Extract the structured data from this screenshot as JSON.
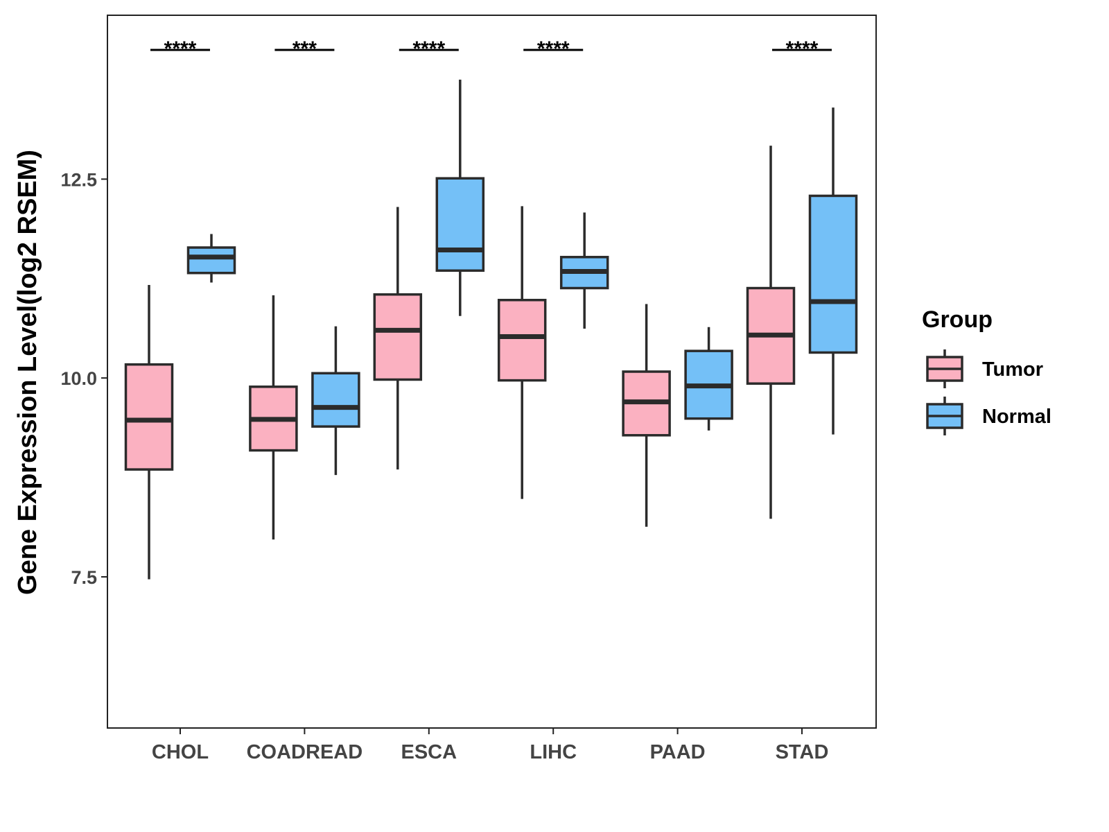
{
  "chart_data": {
    "type": "box",
    "title": "",
    "xlabel": "",
    "ylabel": "Gene Expression Level(log2 RSEM)",
    "ylim": [
      5.6,
      14.56
    ],
    "yticks": [
      "7.5",
      "10.0",
      "12.5"
    ],
    "ytick_values": [
      7.5,
      10.0,
      12.5
    ],
    "grid": false,
    "legend": {
      "title": "Group",
      "placement": "right",
      "entries": [
        "Tumor",
        "Normal"
      ]
    },
    "colors": {
      "Tumor": "#FBB1C1",
      "Normal": "#74C0F7",
      "outline": "#2b2b2b"
    },
    "categories": [
      "CHOL",
      "COADREAD",
      "ESCA",
      "LIHC",
      "PAAD",
      "STAD"
    ],
    "significance": [
      "****",
      "***",
      "****",
      "****",
      "",
      "****"
    ],
    "series": [
      {
        "name": "Tumor",
        "boxes": [
          {
            "whisker_low": 7.47,
            "q1": 8.85,
            "median": 9.47,
            "q3": 10.17,
            "whisker_high": 11.17
          },
          {
            "whisker_low": 7.97,
            "q1": 9.09,
            "median": 9.48,
            "q3": 9.89,
            "whisker_high": 11.04
          },
          {
            "whisker_low": 8.85,
            "q1": 9.98,
            "median": 10.6,
            "q3": 11.05,
            "whisker_high": 12.15
          },
          {
            "whisker_low": 8.48,
            "q1": 9.97,
            "median": 10.52,
            "q3": 10.98,
            "whisker_high": 12.16
          },
          {
            "whisker_low": 8.13,
            "q1": 9.28,
            "median": 9.7,
            "q3": 10.08,
            "whisker_high": 10.93
          },
          {
            "whisker_low": 8.23,
            "q1": 9.93,
            "median": 10.54,
            "q3": 11.13,
            "whisker_high": 12.92
          }
        ]
      },
      {
        "name": "Normal",
        "boxes": [
          {
            "whisker_low": 11.2,
            "q1": 11.32,
            "median": 11.52,
            "q3": 11.64,
            "whisker_high": 11.81
          },
          {
            "whisker_low": 8.78,
            "q1": 9.39,
            "median": 9.63,
            "q3": 10.06,
            "whisker_high": 10.65
          },
          {
            "whisker_low": 10.78,
            "q1": 11.35,
            "median": 11.61,
            "q3": 12.51,
            "whisker_high": 13.75
          },
          {
            "whisker_low": 10.62,
            "q1": 11.13,
            "median": 11.34,
            "q3": 11.52,
            "whisker_high": 12.08
          },
          {
            "whisker_low": 9.34,
            "q1": 9.49,
            "median": 9.9,
            "q3": 10.34,
            "whisker_high": 10.64
          },
          {
            "whisker_low": 9.29,
            "q1": 10.32,
            "median": 10.96,
            "q3": 12.29,
            "whisker_high": 13.4
          }
        ]
      }
    ]
  }
}
